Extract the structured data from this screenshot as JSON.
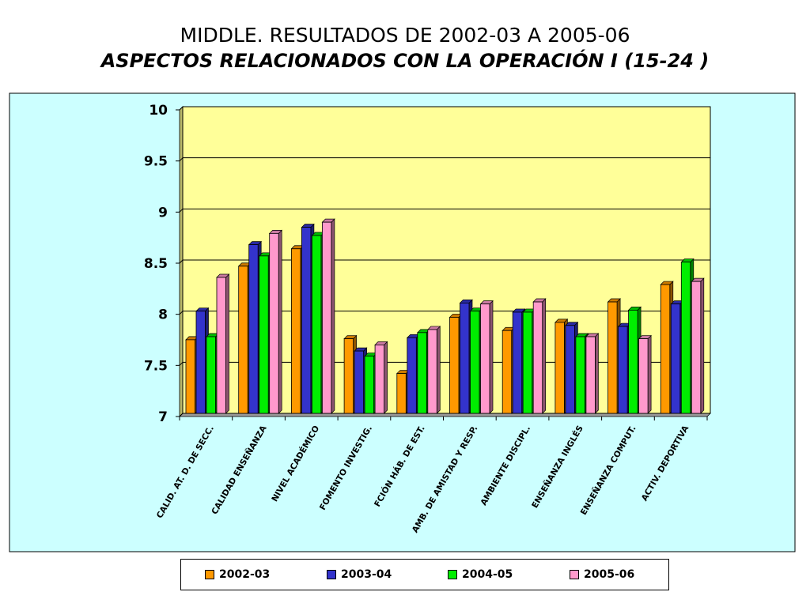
{
  "header": {
    "title": "MIDDLE. RESULTADOS DE 2002-03  A 2005-06",
    "subtitle": "ASPECTOS RELACIONADOS CON LA OPERACIÓN  I (15-24 )"
  },
  "colors": {
    "outer_background": "#ccffff",
    "plot_background": "#ffff99",
    "series": [
      "#ff9900",
      "#3333cc",
      "#00ee00",
      "#ff99cc"
    ]
  },
  "chart_data": {
    "type": "bar",
    "title": "ASPECTOS RELACIONADOS CON LA OPERACIÓN  I (15-24 )",
    "xlabel": "",
    "ylabel": "",
    "ylim": [
      7,
      10
    ],
    "yticks": [
      "7",
      "7.5",
      "8",
      "8.5",
      "9",
      "9.5",
      "10"
    ],
    "grid": true,
    "legend_position": "bottom",
    "categories": [
      "CALID. AT. D. DE SECC.",
      "CALIDAD ENSEÑANZA",
      "NIVEL ACADÉMICO",
      "FOMENTO INVESTIG.",
      "FCIÓN HÁB. DE EST.",
      "AMB. DE AMISTAD Y RESP.",
      "AMBIENTE DISCIPL.",
      "ENSEÑANZA INGLÉS",
      "ENSEÑANZA COMPUT.",
      "ACTIV. DEPORTIVA"
    ],
    "series": [
      {
        "name": "2002-03",
        "values": [
          7.72,
          8.44,
          8.61,
          7.73,
          7.39,
          7.94,
          7.81,
          7.89,
          8.09,
          8.26
        ]
      },
      {
        "name": "2003-04",
        "values": [
          8.0,
          8.65,
          8.82,
          7.61,
          7.74,
          8.08,
          7.99,
          7.86,
          7.85,
          8.07
        ]
      },
      {
        "name": "2004-05",
        "values": [
          7.75,
          8.54,
          8.74,
          7.56,
          7.79,
          8.0,
          7.99,
          7.75,
          8.01,
          8.48
        ]
      },
      {
        "name": "2005-06",
        "values": [
          8.33,
          8.76,
          8.87,
          7.67,
          7.82,
          8.07,
          8.09,
          7.75,
          7.73,
          8.29
        ]
      }
    ]
  }
}
